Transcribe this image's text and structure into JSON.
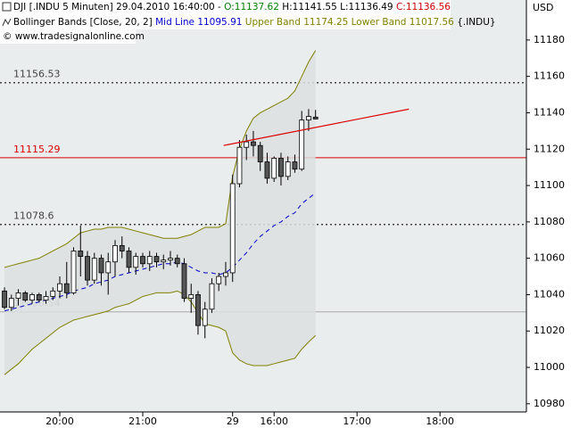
{
  "chart_data": {
    "type": "candlestick",
    "header": {
      "symbol": "DJI [.INDU  5 Minuten] 29.04.2010 16:40:00 -",
      "open": "O:11137.62",
      "high": "H:11141.55",
      "low": "L:11136.49",
      "close": "C:11136.56"
    },
    "indicator": {
      "name": "Bollinger Bands [Close, 20, 2]",
      "mid": "Mid Line 11095.91",
      "bands": "Upper Band 11174.25 Lower Band 11017.56",
      "source": "{.INDU}"
    },
    "copyright": "© www.tradesignalonline.com",
    "currency": "USD",
    "open": [
      11042,
      11033,
      11038,
      11041,
      11037,
      11040,
      11037,
      11039,
      11042,
      11046,
      11041,
      11064,
      11061,
      11048,
      11060,
      11052,
      11058,
      11067,
      11064,
      11055,
      11061,
      11057,
      11061,
      11058,
      11059,
      11060,
      11057,
      11038,
      11040,
      11023,
      11032,
      11046,
      11050,
      11052,
      11101,
      11121,
      11124,
      11122,
      11113,
      11104,
      11115,
      11105,
      11113,
      11109,
      11136,
      11137.62
    ],
    "high": [
      11044,
      11040,
      11043,
      11042,
      11041,
      11041,
      11042,
      11044,
      11050,
      11058,
      11066,
      11078,
      11064,
      11063,
      11062,
      11063,
      11070,
      11072,
      11066,
      11063,
      11063,
      11064,
      11063,
      11062,
      11064,
      11062,
      11060,
      11046,
      11042,
      11036,
      11049,
      11052,
      11058,
      11106,
      11125,
      11128,
      11130,
      11124,
      11118,
      11116,
      11118,
      11116,
      11117,
      11141,
      11142,
      11141.55
    ],
    "low": [
      11032,
      11031,
      11034,
      11036,
      11035,
      11036,
      11035,
      11037,
      11038,
      11038,
      11040,
      11050,
      11045,
      11046,
      11045,
      11040,
      11050,
      11060,
      11052,
      11051,
      11055,
      11053,
      11055,
      11054,
      11056,
      11055,
      11036,
      11030,
      11018,
      11016,
      11030,
      11042,
      11045,
      11047,
      11099,
      11114,
      11116,
      11108,
      11101,
      11102,
      11100,
      11103,
      11107,
      11108,
      11130,
      11136.49
    ],
    "close": [
      11033,
      11038,
      11041,
      11037,
      11040,
      11037,
      11039,
      11042,
      11046,
      11041,
      11064,
      11061,
      11048,
      11060,
      11052,
      11058,
      11067,
      11064,
      11055,
      11061,
      11057,
      11061,
      11058,
      11059,
      11060,
      11057,
      11038,
      11040,
      11023,
      11032,
      11046,
      11050,
      11052,
      11101,
      11121,
      11124,
      11122,
      11113,
      11104,
      11115,
      11105,
      11113,
      11109,
      11136,
      11138,
      11136.56
    ],
    "up_color": "#ffffff",
    "down_color": "#555555",
    "bands": [
      {
        "color": "#0000cc",
        "dash": true,
        "values": [
          11031,
          11032,
          11033,
          11034,
          11035,
          11036,
          11037,
          11038,
          11039,
          11040,
          11042,
          11043,
          11044,
          11046,
          11047,
          11048,
          11050,
          11051,
          11052,
          11053,
          11054,
          11055,
          11056,
          11057,
          11057,
          11058,
          11057,
          11055,
          11053,
          11052,
          11052,
          11051,
          11052,
          11055,
          11059,
          11063,
          11068,
          11072,
          11075,
          11078,
          11080,
          11083,
          11085,
          11090,
          11093,
          11095.91
        ]
      },
      {
        "color": "#808000",
        "dash": false,
        "values": [
          11055,
          11056,
          11057,
          11058,
          11059,
          11060,
          11062,
          11064,
          11066,
          11068,
          11071,
          11074,
          11075,
          11076,
          11076,
          11077,
          11077,
          11077,
          11076,
          11075,
          11074,
          11073,
          11072,
          11071,
          11071,
          11071,
          11072,
          11073,
          11075,
          11077,
          11077,
          11077,
          11079,
          11105,
          11120,
          11130,
          11137,
          11140,
          11142,
          11144,
          11146,
          11148,
          11152,
          11160,
          11168,
          11174.25
        ]
      },
      {
        "color": "#808000",
        "dash": false,
        "values": [
          10996,
          10999,
          11002,
          11006,
          11010,
          11013,
          11016,
          11019,
          11022,
          11024,
          11026,
          11027,
          11028,
          11029,
          11030,
          11031,
          11033,
          11034,
          11035,
          11037,
          11039,
          11040,
          11041,
          11041,
          11041,
          11042,
          11040,
          11036,
          11030,
          11024,
          11023,
          11022,
          11020,
          11008,
          11004,
          11002,
          11001,
          11001,
          11001,
          11002,
          11003,
          11004,
          11005,
          11010,
          11014,
          11017.56
        ]
      }
    ],
    "levels": [
      {
        "value": 11156.53,
        "color": "#444444",
        "dotted": true
      },
      {
        "value": 11115.29,
        "color": "#dd0000",
        "dotted": false
      },
      {
        "value": 11078.6,
        "color": "#444444",
        "dotted": true
      },
      {
        "value": 11030.54,
        "color": "#aaaaaa",
        "dotted": false
      }
    ],
    "trendline": {
      "color": "#dd0000",
      "x": [
        31.7,
        58.5
      ],
      "y": [
        11122,
        11142
      ]
    },
    "xlim": [
      -0.65,
      75.5
    ],
    "xticks": [
      {
        "value": 8,
        "label": "20:00"
      },
      {
        "value": 20,
        "label": "21:00"
      },
      {
        "value": 33,
        "label": "29"
      },
      {
        "value": 39,
        "label": "16:00"
      },
      {
        "value": 51,
        "label": "17:00"
      },
      {
        "value": 63,
        "label": "18:00"
      }
    ],
    "ylim": [
      10975.5,
      11202
    ],
    "yticks": [
      10980,
      11000,
      11020,
      11040,
      11060,
      11080,
      11100,
      11120,
      11140,
      11160,
      11180
    ]
  }
}
